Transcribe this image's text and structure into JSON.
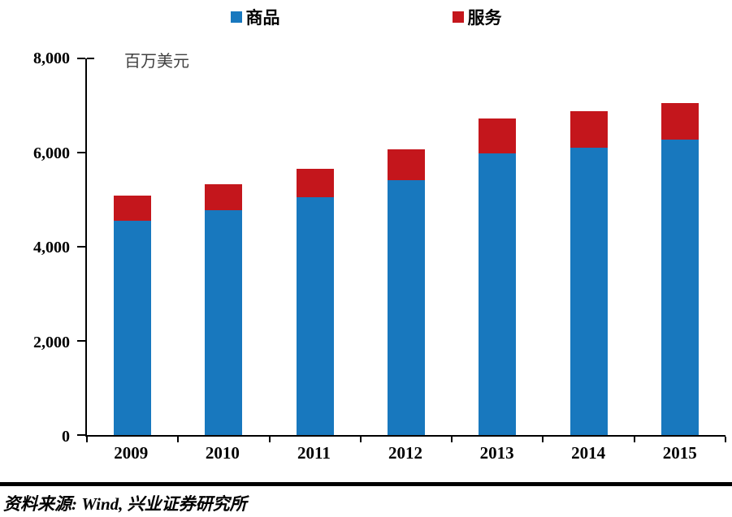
{
  "chart_data": {
    "type": "bar",
    "stacked": true,
    "unit_label": "百万美元",
    "categories": [
      "2009",
      "2010",
      "2011",
      "2012",
      "2013",
      "2014",
      "2015"
    ],
    "series": [
      {
        "name": "商品",
        "color": "#1878be",
        "values": [
          4560,
          4780,
          5060,
          5410,
          5980,
          6110,
          6280
        ]
      },
      {
        "name": "服务",
        "color": "#c4161c",
        "values": [
          520,
          550,
          590,
          660,
          740,
          770,
          780
        ]
      }
    ],
    "ylim": [
      0,
      8000
    ],
    "yticks": [
      0,
      2000,
      4000,
      6000,
      8000
    ],
    "ytick_labels": [
      "0",
      "2,000",
      "4,000",
      "6,000",
      "8,000"
    ],
    "legend_position": "top",
    "grid": false
  },
  "footer": {
    "source_text": "资料来源: Wind, 兴业证券研究所"
  }
}
